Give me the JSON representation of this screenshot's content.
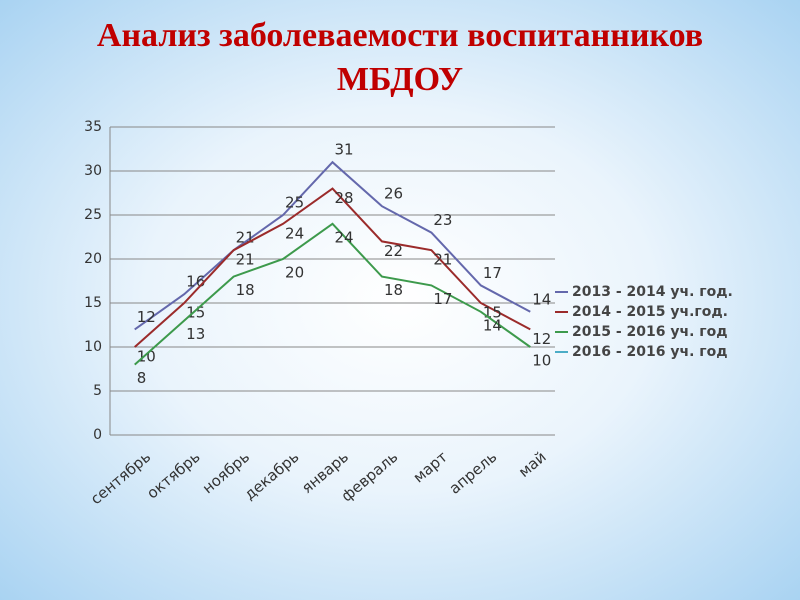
{
  "chart_data": {
    "type": "line",
    "title": "Анализ заболеваемости воспитанников МБДОУ",
    "categories": [
      "сентябрь",
      "октябрь",
      "ноябрь",
      "декабрь",
      "январь",
      "февраль",
      "март",
      "апрель",
      "май"
    ],
    "series": [
      {
        "name": "2013 - 2014 уч. год.",
        "color": "#6468ac",
        "values": [
          12,
          16,
          21,
          25,
          31,
          26,
          23,
          17,
          14
        ]
      },
      {
        "name": "2014 - 2015 уч.год.",
        "color": "#9b2b2b",
        "values": [
          10,
          15,
          21,
          24,
          28,
          22,
          21,
          15,
          12
        ]
      },
      {
        "name": "2015 - 2016 уч. год",
        "color": "#3d9a4c",
        "values": [
          8,
          13,
          18,
          20,
          24,
          18,
          17,
          14,
          10
        ]
      },
      {
        "name": "2016 - 2016 уч. год",
        "color": "#4bacc6",
        "values": [
          null,
          null,
          null,
          null,
          null,
          null,
          null,
          null,
          null
        ]
      }
    ],
    "ylim": [
      0,
      35
    ],
    "yticks": [
      0,
      5,
      10,
      15,
      20,
      25,
      30,
      35
    ],
    "grid": true,
    "legend": "right"
  }
}
